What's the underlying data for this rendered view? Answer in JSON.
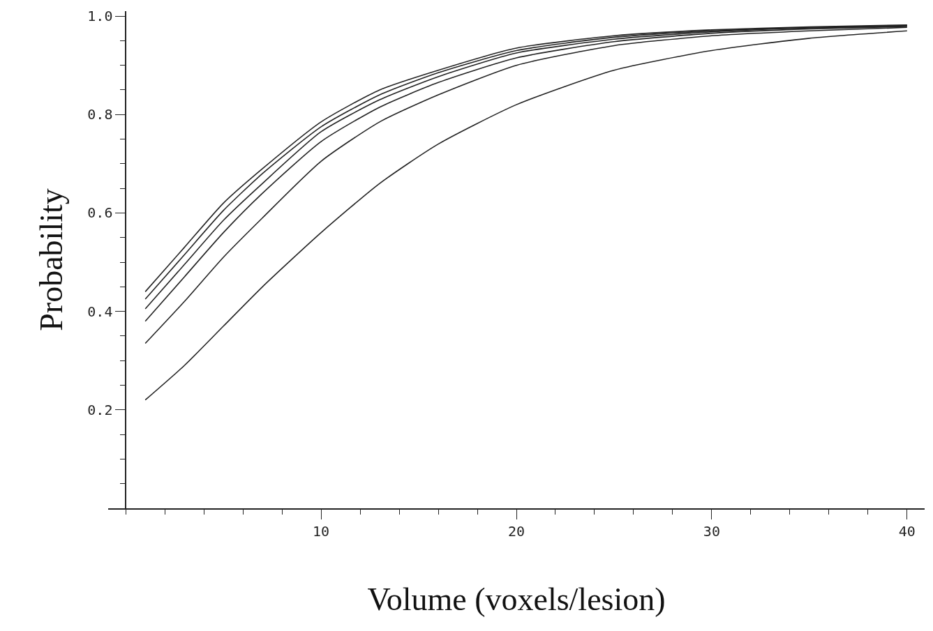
{
  "chart_data": {
    "type": "line",
    "xlabel": "Volume (voxels/lesion)",
    "ylabel": "Probability",
    "x": [
      1,
      3,
      5,
      7,
      10,
      13,
      16,
      20,
      25,
      30,
      35,
      40
    ],
    "series": [
      {
        "color": "#222222",
        "values": [
          0.44,
          0.53,
          0.62,
          0.69,
          0.785,
          0.85,
          0.89,
          0.935,
          0.96,
          0.972,
          0.978,
          0.982
        ]
      },
      {
        "color": "#222222",
        "values": [
          0.425,
          0.515,
          0.605,
          0.68,
          0.775,
          0.84,
          0.885,
          0.93,
          0.957,
          0.97,
          0.977,
          0.981
        ]
      },
      {
        "color": "#222222",
        "values": [
          0.405,
          0.495,
          0.585,
          0.66,
          0.765,
          0.83,
          0.877,
          0.925,
          0.953,
          0.968,
          0.976,
          0.98
        ]
      },
      {
        "color": "#222222",
        "values": [
          0.38,
          0.47,
          0.56,
          0.64,
          0.745,
          0.815,
          0.865,
          0.915,
          0.948,
          0.965,
          0.974,
          0.979
        ]
      },
      {
        "color": "#222222",
        "values": [
          0.335,
          0.42,
          0.51,
          0.59,
          0.705,
          0.785,
          0.84,
          0.9,
          0.94,
          0.96,
          0.97,
          0.977
        ]
      },
      {
        "color": "#222222",
        "values": [
          0.22,
          0.29,
          0.37,
          0.45,
          0.56,
          0.66,
          0.74,
          0.82,
          0.89,
          0.93,
          0.955,
          0.97
        ]
      }
    ],
    "xlim": [
      -0.9,
      40.9
    ],
    "ylim": [
      0,
      1.01
    ],
    "xticks": [
      10,
      20,
      30,
      40
    ],
    "yticks": [
      0.2,
      0.4,
      0.6,
      0.8,
      {
        "value": 1.0,
        "label": "1.0"
      }
    ],
    "grid": false,
    "marker": "none",
    "line_style": "solid"
  }
}
